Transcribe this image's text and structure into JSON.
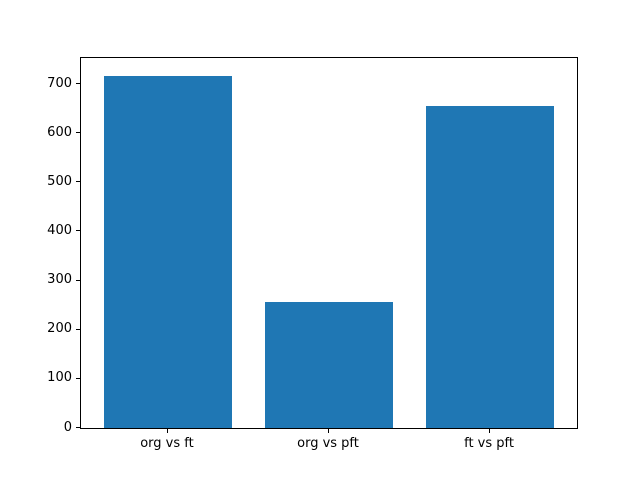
{
  "chart_data": {
    "type": "bar",
    "categories": [
      "org vs ft",
      "org vs pft",
      "ft vs pft"
    ],
    "values": [
      717,
      257,
      655
    ],
    "yticks": [
      0,
      100,
      200,
      300,
      400,
      500,
      600,
      700
    ],
    "ylim": [
      0,
      753
    ],
    "title": "",
    "xlabel": "",
    "ylabel": "",
    "bar_color": "#1f77b4",
    "background_color": "#ffffff",
    "grid": false,
    "legend_position": "none"
  }
}
